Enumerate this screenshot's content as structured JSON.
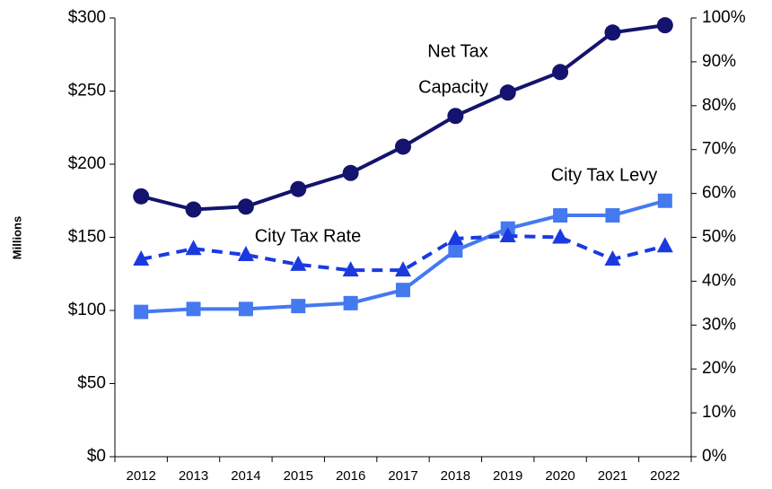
{
  "chart_data": {
    "type": "line",
    "y_axis_label": "Millions",
    "categories": [
      "2012",
      "2013",
      "2014",
      "2015",
      "2016",
      "2017",
      "2018",
      "2019",
      "2020",
      "2021",
      "2022"
    ],
    "series": [
      {
        "name": "Net Tax Capacity",
        "color": "#14146e",
        "marker": "circle",
        "dash": false,
        "values": [
          178,
          169,
          171,
          183,
          194,
          212,
          233,
          249,
          263,
          290,
          295
        ]
      },
      {
        "name": "City Tax Levy",
        "color": "#4479f0",
        "marker": "square",
        "dash": false,
        "values": [
          99,
          101,
          101,
          103,
          105,
          114,
          141,
          156,
          165,
          165,
          175
        ]
      },
      {
        "name": "City Tax Rate",
        "color": "#1a3ae0",
        "marker": "triangle",
        "dash": true,
        "axis": "y2",
        "values": [
          45,
          47.4,
          46,
          43.8,
          42.5,
          42.5,
          49.7,
          50.3,
          50,
          45,
          48
        ]
      }
    ],
    "annotations": [
      "Net Tax",
      "Capacity",
      "City Tax Rate",
      "City Tax Levy"
    ],
    "ylim": [
      0,
      300
    ],
    "yticks": [
      {
        "value": 0,
        "label": "$0"
      },
      {
        "value": 50,
        "label": "$50"
      },
      {
        "value": 100,
        "label": "$100"
      },
      {
        "value": 150,
        "label": "$150"
      },
      {
        "value": 200,
        "label": "$200"
      },
      {
        "value": 250,
        "label": "$250"
      },
      {
        "value": 300,
        "label": "$300"
      }
    ],
    "y2lim": [
      0,
      100
    ],
    "y2ticks": [
      {
        "value": 0,
        "label": "0%"
      },
      {
        "value": 10,
        "label": "10%"
      },
      {
        "value": 20,
        "label": "20%"
      },
      {
        "value": 30,
        "label": "30%"
      },
      {
        "value": 40,
        "label": "40%"
      },
      {
        "value": 50,
        "label": "50%"
      },
      {
        "value": 60,
        "label": "60%"
      },
      {
        "value": 70,
        "label": "70%"
      },
      {
        "value": 80,
        "label": "80%"
      },
      {
        "value": 90,
        "label": "90%"
      },
      {
        "value": 100,
        "label": "100%"
      }
    ],
    "grid": false
  }
}
